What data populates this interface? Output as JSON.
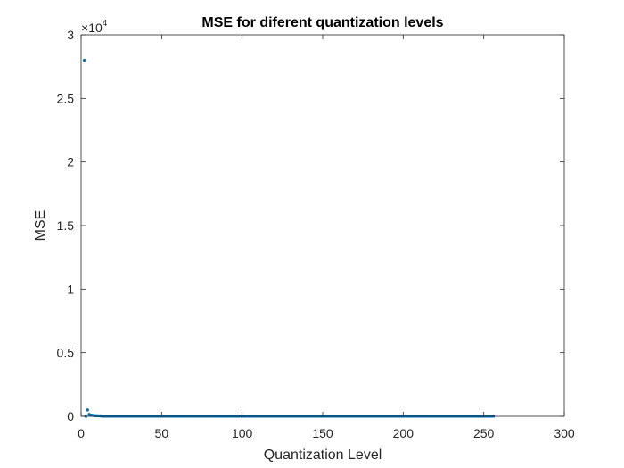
{
  "chart_data": {
    "type": "scatter",
    "title": "MSE for diferent quantization levels",
    "xlabel": "Quantization Level",
    "ylabel": "MSE",
    "xlim": [
      0,
      300
    ],
    "ylim": [
      0,
      30000
    ],
    "xticks": [
      0,
      50,
      100,
      150,
      200,
      250,
      300
    ],
    "xtick_labels": [
      "0",
      "50",
      "100",
      "150",
      "200",
      "250",
      "300"
    ],
    "yticks": [
      0,
      5000,
      10000,
      15000,
      20000,
      25000,
      30000
    ],
    "ytick_labels": [
      "0",
      "0.5",
      "1",
      "1.5",
      "2",
      "2.5",
      "3"
    ],
    "y_exponent": {
      "base": "10",
      "power": "4",
      "prefix": "×"
    },
    "grid": false,
    "box": true,
    "marker_color": "#0072BD",
    "series": [
      {
        "x_start": 2,
        "x_end": 256,
        "x_step": 1,
        "head_values": [
          28000,
          0,
          500,
          150,
          100,
          80,
          60,
          50,
          45,
          40,
          35
        ],
        "tail_value": 10
      }
    ]
  }
}
